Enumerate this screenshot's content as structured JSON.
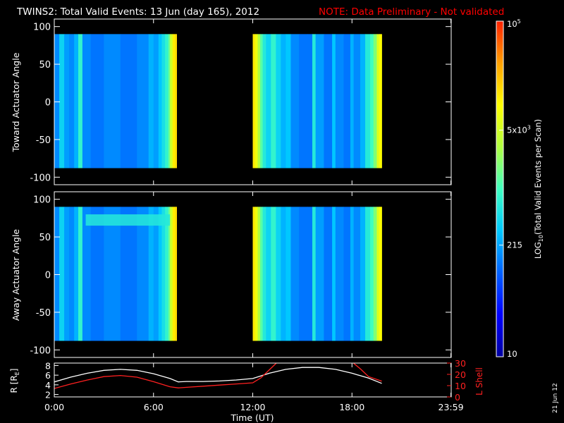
{
  "title": {
    "main": "TWINS2: Total Valid Events: 13 Jun (day 165), 2012",
    "note": "NOTE: Data Preliminary - Not validated",
    "note_color": "#ff0000"
  },
  "timestamp": "21 Jun 12",
  "x_axis": {
    "label": "Time (UT)",
    "ticks": [
      "0:00",
      "6:00",
      "12:00",
      "18:00",
      "23:59"
    ],
    "tick_hours": [
      0,
      6,
      12,
      18,
      23.98
    ]
  },
  "colorbar": {
    "label_prefix": "LOG",
    "label_sub": "10",
    "label_suffix": "(Total Valid Events per Scan)",
    "tick_labels": [
      "10",
      "215",
      "5x10",
      "10"
    ],
    "tick_sup": [
      "",
      "",
      "3",
      "5"
    ],
    "tick_log_values": [
      1.0,
      2.33,
      3.7,
      5.0
    ],
    "range_log": [
      1,
      5
    ],
    "colors": [
      "#0000a0",
      "#0000ff",
      "#0060ff",
      "#00c8ff",
      "#40ffc0",
      "#b0ff40",
      "#ffff00",
      "#ffa000",
      "#ff2000"
    ]
  },
  "chart_data": [
    {
      "type": "heatmap",
      "name": "toward",
      "ylabel": "Toward Actuator Angle",
      "ylim": [
        -110,
        110
      ],
      "yticks": [
        "100",
        "50",
        "0",
        "-50",
        "-100"
      ],
      "ytick_values": [
        100,
        50,
        0,
        -50,
        -100
      ],
      "angle_range": [
        -88,
        90
      ],
      "data_intervals_hours": [
        [
          0.0,
          7.4
        ],
        [
          12.0,
          19.8
        ]
      ],
      "time_log_counts": [
        [
          0.0,
          2.2
        ],
        [
          0.3,
          2.6
        ],
        [
          0.6,
          2.3
        ],
        [
          0.9,
          2.2
        ],
        [
          1.2,
          2.4
        ],
        [
          1.45,
          2.9
        ],
        [
          1.7,
          2.2
        ],
        [
          2.2,
          2.1
        ],
        [
          3.0,
          2.2
        ],
        [
          4.0,
          2.1
        ],
        [
          5.0,
          2.2
        ],
        [
          5.7,
          2.4
        ],
        [
          6.0,
          2.3
        ],
        [
          6.3,
          2.5
        ],
        [
          6.5,
          2.7
        ],
        [
          6.7,
          2.9
        ],
        [
          6.9,
          3.2
        ],
        [
          7.0,
          3.7
        ],
        [
          7.15,
          4.1
        ],
        [
          7.3,
          4.2
        ],
        [
          12.0,
          4.1
        ],
        [
          12.15,
          3.9
        ],
        [
          12.3,
          3.5
        ],
        [
          12.45,
          3.1
        ],
        [
          12.6,
          2.8
        ],
        [
          12.8,
          2.6
        ],
        [
          13.1,
          2.9
        ],
        [
          13.4,
          2.6
        ],
        [
          13.7,
          2.4
        ],
        [
          14.0,
          2.5
        ],
        [
          14.3,
          2.2
        ],
        [
          14.8,
          2.1
        ],
        [
          15.3,
          2.1
        ],
        [
          15.6,
          2.8
        ],
        [
          15.8,
          2.3
        ],
        [
          16.3,
          2.1
        ],
        [
          16.8,
          2.5
        ],
        [
          17.0,
          2.2
        ],
        [
          17.5,
          2.1
        ],
        [
          17.9,
          2.4
        ],
        [
          18.1,
          2.2
        ],
        [
          18.5,
          2.4
        ],
        [
          18.8,
          2.8
        ],
        [
          19.1,
          3.0
        ],
        [
          19.3,
          3.3
        ],
        [
          19.5,
          3.8
        ],
        [
          19.65,
          4.0
        ]
      ]
    },
    {
      "type": "heatmap",
      "name": "away",
      "ylabel": "Away Actuator Angle",
      "ylim": [
        -110,
        110
      ],
      "yticks": [
        "100",
        "50",
        "0",
        "-50",
        "-100"
      ],
      "ytick_values": [
        100,
        50,
        0,
        -50,
        -100
      ],
      "angle_range": [
        -88,
        90
      ],
      "data_intervals_hours": [
        [
          0.0,
          7.4
        ],
        [
          12.0,
          19.8
        ]
      ],
      "enhanced_band": {
        "hours": [
          1.9,
          7.0
        ],
        "angle": [
          65,
          80
        ],
        "log_count": 2.8
      },
      "time_log_counts": [
        [
          0.0,
          2.2
        ],
        [
          0.3,
          2.6
        ],
        [
          0.6,
          2.3
        ],
        [
          0.9,
          2.2
        ],
        [
          1.2,
          2.4
        ],
        [
          1.45,
          2.9
        ],
        [
          1.7,
          2.2
        ],
        [
          2.2,
          2.1
        ],
        [
          3.0,
          2.2
        ],
        [
          4.0,
          2.1
        ],
        [
          5.0,
          2.2
        ],
        [
          5.7,
          2.4
        ],
        [
          6.0,
          2.3
        ],
        [
          6.3,
          2.5
        ],
        [
          6.5,
          2.7
        ],
        [
          6.7,
          2.9
        ],
        [
          6.9,
          3.2
        ],
        [
          7.0,
          3.7
        ],
        [
          7.15,
          4.1
        ],
        [
          7.3,
          4.2
        ],
        [
          12.0,
          4.1
        ],
        [
          12.15,
          3.9
        ],
        [
          12.3,
          3.5
        ],
        [
          12.45,
          3.1
        ],
        [
          12.6,
          2.8
        ],
        [
          12.8,
          2.6
        ],
        [
          13.1,
          2.9
        ],
        [
          13.4,
          2.6
        ],
        [
          13.7,
          2.4
        ],
        [
          14.0,
          2.5
        ],
        [
          14.3,
          2.2
        ],
        [
          14.8,
          2.1
        ],
        [
          15.3,
          2.1
        ],
        [
          15.6,
          2.8
        ],
        [
          15.8,
          2.3
        ],
        [
          16.3,
          2.1
        ],
        [
          16.8,
          2.5
        ],
        [
          17.0,
          2.2
        ],
        [
          17.5,
          2.1
        ],
        [
          17.9,
          2.4
        ],
        [
          18.1,
          2.2
        ],
        [
          18.5,
          2.4
        ],
        [
          18.8,
          2.8
        ],
        [
          19.1,
          3.0
        ],
        [
          19.3,
          3.3
        ],
        [
          19.5,
          3.8
        ],
        [
          19.65,
          4.0
        ]
      ]
    },
    {
      "type": "line",
      "name": "orbit",
      "ylabel_left": "R [R",
      "ylabel_left_sub": "E",
      "ylabel_left_end": "]",
      "ylabel_right": "L Shell",
      "ylim_left": [
        1.5,
        8.5
      ],
      "yticks_left": [
        "8",
        "6",
        "4",
        "2"
      ],
      "ytick_left_values": [
        8,
        6,
        4,
        2
      ],
      "ylim_right": [
        0,
        30
      ],
      "yticks_right": [
        "30",
        "20",
        "10",
        "0"
      ],
      "ytick_right_values": [
        30,
        20,
        10,
        0
      ],
      "series": [
        {
          "name": "R",
          "axis": "left",
          "color": "#ffffff",
          "x": [
            0,
            1,
            2,
            3,
            4,
            5,
            6,
            7,
            7.5,
            8,
            9,
            10,
            11,
            12,
            13,
            14,
            15,
            16,
            17,
            18,
            19,
            19.8
          ],
          "y": [
            4.6,
            5.6,
            6.4,
            7.0,
            7.2,
            7.0,
            6.3,
            5.3,
            4.6,
            4.7,
            4.7,
            4.8,
            5.0,
            5.3,
            6.4,
            7.2,
            7.6,
            7.6,
            7.2,
            6.4,
            5.4,
            4.3
          ]
        },
        {
          "name": "L",
          "axis": "right",
          "color": "#ff2020",
          "x": [
            0,
            1,
            2,
            3,
            4,
            5,
            6,
            7,
            7.5,
            8,
            9,
            10,
            11,
            12,
            12.5,
            13,
            13.5,
            18,
            18.5,
            19,
            19.8
          ],
          "y": [
            7.5,
            11.5,
            15,
            18,
            19,
            17.5,
            13.5,
            9,
            8,
            8.5,
            9.5,
            10.5,
            11.5,
            12.5,
            17,
            24,
            31,
            31,
            25,
            18,
            14
          ]
        }
      ]
    }
  ]
}
